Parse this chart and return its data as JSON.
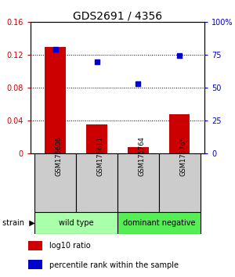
{
  "title": "GDS2691 / 4356",
  "categories": [
    "GSM176606",
    "GSM176611",
    "GSM175764",
    "GSM175765"
  ],
  "log10_ratio": [
    0.13,
    0.035,
    0.008,
    0.048
  ],
  "percentile_rank": [
    0.795,
    0.695,
    0.53,
    0.745
  ],
  "bar_color": "#cc0000",
  "dot_color": "#0000cc",
  "ylim_left": [
    0,
    0.16
  ],
  "ylim_right": [
    0,
    1.0
  ],
  "yticks_left": [
    0,
    0.04,
    0.08,
    0.12,
    0.16
  ],
  "yticks_right": [
    0.0,
    0.25,
    0.5,
    0.75,
    1.0
  ],
  "ytick_labels_left": [
    "0",
    "0.04",
    "0.08",
    "0.12",
    "0.16"
  ],
  "ytick_labels_right": [
    "0",
    "25",
    "50",
    "75",
    "100%"
  ],
  "groups": [
    {
      "label": "wild type",
      "indices": [
        0,
        1
      ],
      "color": "#aaffaa"
    },
    {
      "label": "dominant negative",
      "indices": [
        2,
        3
      ],
      "color": "#55ee55"
    }
  ],
  "strain_label": "strain",
  "legend_bar_label": "log10 ratio",
  "legend_dot_label": "percentile rank within the sample",
  "left_color": "#cc0000",
  "right_color": "#0000cc",
  "background_color": "#ffffff",
  "bar_width": 0.5,
  "sample_box_color": "#cccccc"
}
